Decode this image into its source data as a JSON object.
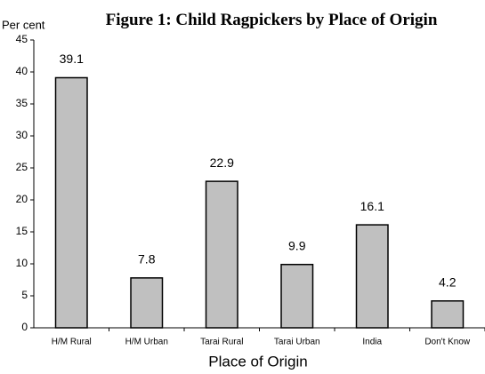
{
  "chart_data": {
    "type": "bar",
    "title": "Figure 1: Child Ragpickers by Place of Origin",
    "y_label": "Per cent",
    "x_label": "Place of Origin",
    "categories": [
      "H/M Rural",
      "H/M Urban",
      "Tarai Rural",
      "Tarai Urban",
      "India",
      "Don't Know"
    ],
    "values": [
      39.1,
      7.8,
      22.9,
      9.9,
      16.1,
      4.2
    ],
    "color": "#c0c0c0",
    "ylim": [
      0,
      45
    ],
    "yticks": [
      0,
      5,
      10,
      15,
      20,
      25,
      30,
      35,
      40,
      45
    ],
    "grid": false
  }
}
